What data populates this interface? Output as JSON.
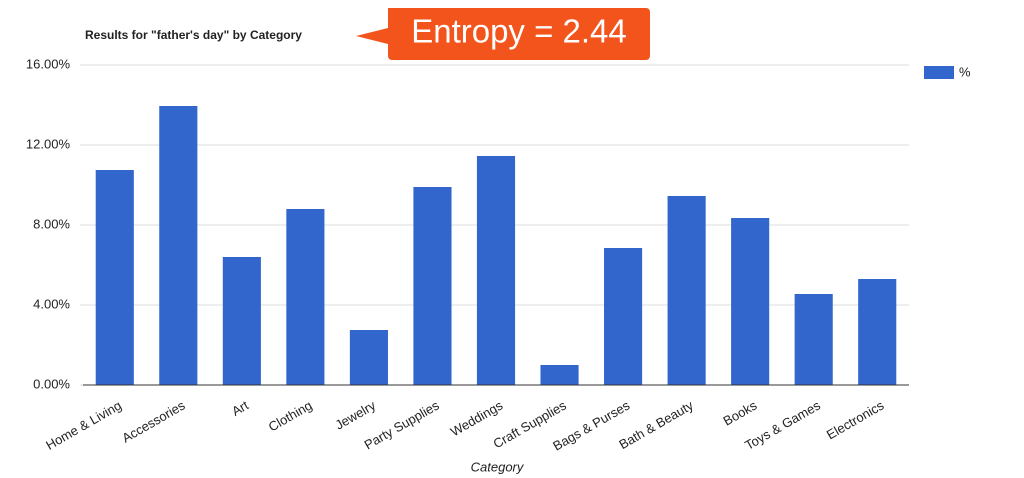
{
  "chart_data": {
    "type": "bar",
    "title": "Results for \"father's day\" by Category",
    "annotation": "Entropy = 2.44",
    "x_label": "Category",
    "categories": [
      "Home & Living",
      "Accessories",
      "Art",
      "Clothing",
      "Jewelry",
      "Party Supplies",
      "Weddings",
      "Craft Supplies",
      "Bags & Purses",
      "Bath & Beauty",
      "Books",
      "Toys & Games",
      "Electronics"
    ],
    "series": [
      {
        "name": "%",
        "color": "#3366cc",
        "values": [
          10.75,
          13.95,
          6.4,
          8.8,
          2.75,
          9.9,
          11.45,
          1.0,
          6.85,
          9.45,
          8.35,
          4.55,
          5.3
        ]
      }
    ],
    "ylim": [
      0,
      16
    ],
    "yticks": [
      {
        "value": 0,
        "label": "0.00%"
      },
      {
        "value": 4,
        "label": "4.00%"
      },
      {
        "value": 8,
        "label": "8.00%"
      },
      {
        "value": 12,
        "label": "12.00%"
      },
      {
        "value": 16,
        "label": "16.00%"
      }
    ],
    "grid": true,
    "legend": "top-right"
  }
}
